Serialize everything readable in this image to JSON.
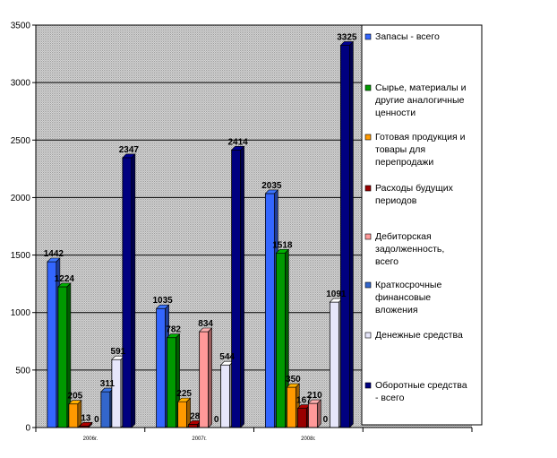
{
  "chart_data": {
    "type": "bar",
    "categories": [
      "2006г.",
      "2007г.",
      "2008г."
    ],
    "series": [
      {
        "name": "Запасы - всего",
        "values": [
          1442,
          1035,
          2035
        ],
        "labels": [
          "1442",
          "1035",
          "2035"
        ],
        "color": "#3366ff"
      },
      {
        "name": "Сырье, материалы и другие аналогичные ценности",
        "values": [
          1224,
          782,
          1518
        ],
        "labels": [
          "1224",
          "782",
          "1518"
        ],
        "color": "#009900"
      },
      {
        "name": "Готовая продукция и товары для перепродажи",
        "values": [
          205,
          225,
          350
        ],
        "labels": [
          "205",
          "225",
          "350"
        ],
        "color": "#ff9900"
      },
      {
        "name": "Расходы будущих периодов",
        "values": [
          13,
          28,
          167
        ],
        "labels": [
          "13",
          "28",
          "167"
        ],
        "color": "#990000"
      },
      {
        "name": "Дебиторская задолженность, всего",
        "values": [
          0,
          834,
          210
        ],
        "labels": [
          "0",
          "834",
          "210"
        ],
        "color": "#ff9999"
      },
      {
        "name": "Краткосрочные финансовые вложения",
        "values": [
          311,
          0,
          0
        ],
        "labels": [
          "311",
          "0",
          "0"
        ],
        "color": "#3366cc"
      },
      {
        "name": "Денежные средства",
        "values": [
          591,
          544,
          1091
        ],
        "labels": [
          "591",
          "544",
          "1091"
        ],
        "color": "#e6e6fa"
      },
      {
        "name": "Оборотные средства - всего",
        "values": [
          2347,
          2414,
          3325
        ],
        "labels": [
          "2347",
          "2414",
          "3325"
        ],
        "color": "#000080"
      }
    ],
    "legend_lines": [
      [
        "Запасы - всего"
      ],
      [
        "Сырье, материалы и",
        "другие аналогичные",
        "ценности"
      ],
      [
        "Готовая продукция и",
        "товары для",
        "перепродажи"
      ],
      [
        "Расходы будущих",
        "периодов"
      ],
      [
        "Дебиторская",
        "задолженность,",
        "всего"
      ],
      [
        "Краткосрочные",
        "финансовые",
        "вложения"
      ],
      [
        "Денежные средства"
      ],
      [
        "Оборотные средства",
        "- всего"
      ]
    ],
    "y_ticks": [
      "0",
      "500",
      "1000",
      "1500",
      "2000",
      "2500",
      "3000",
      "3500"
    ],
    "ylim": [
      0,
      3500
    ],
    "grid": true,
    "legend_position": "right",
    "plot_background": "#c0c0c0",
    "title": "",
    "xlabel": "",
    "ylabel": ""
  }
}
